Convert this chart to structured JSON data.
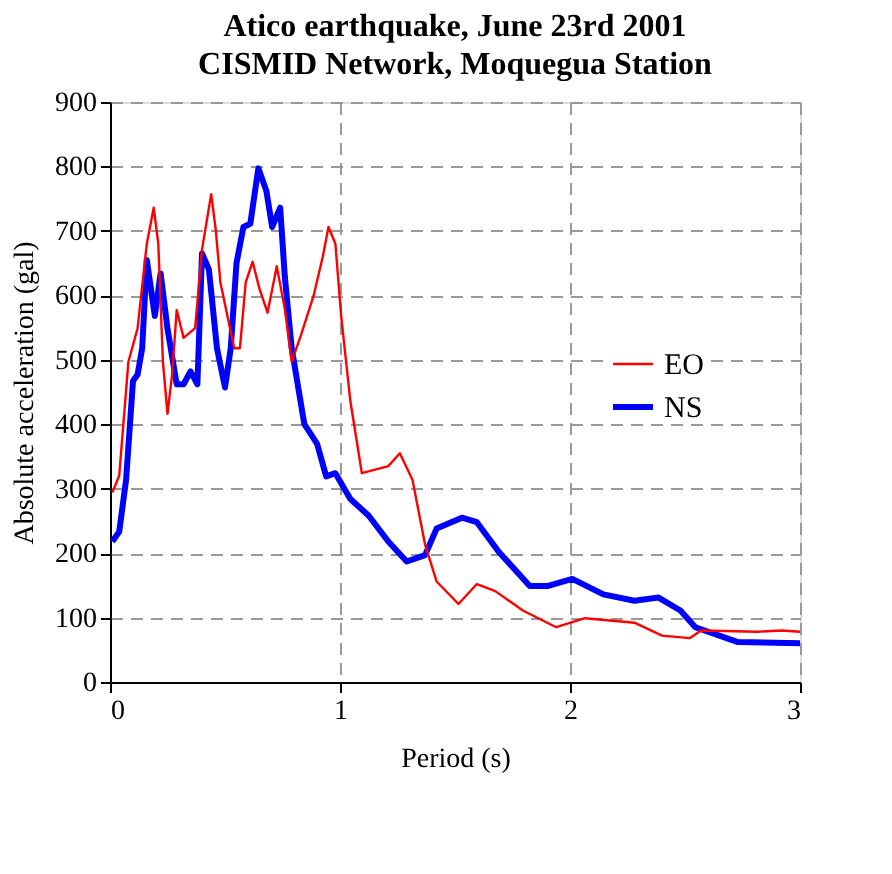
{
  "chart_data": {
    "type": "line",
    "title": "Atico earthquake, June 23rd 2001",
    "subtitle": "CISMID Network, Moquegua Station",
    "xlabel": "Period (s)",
    "ylabel": "Absolute acceleration (gal)",
    "xlim": [
      0,
      3
    ],
    "xticks": [
      0,
      1,
      2,
      3
    ],
    "ylim": [
      0,
      900
    ],
    "yticks": [
      0,
      100,
      200,
      300,
      400,
      500,
      600,
      700,
      800,
      900
    ],
    "grid": true,
    "legend": "right",
    "line_style": "solid",
    "marker": "none",
    "series": [
      {
        "name": "EO",
        "color": "#ff0000",
        "x": [
          0.01,
          0.04,
          0.08,
          0.12,
          0.16,
          0.19,
          0.21,
          0.23,
          0.25,
          0.27,
          0.29,
          0.32,
          0.37,
          0.4,
          0.44,
          0.46,
          0.48,
          0.54,
          0.565,
          0.59,
          0.62,
          0.65,
          0.685,
          0.725,
          0.76,
          0.79,
          0.83,
          0.885,
          0.925,
          0.95,
          0.98,
          1.005,
          1.045,
          1.095,
          1.21,
          1.26,
          1.315,
          1.37,
          1.42,
          1.515,
          1.595,
          1.675,
          1.795,
          1.94,
          2.065,
          2.28,
          2.4,
          2.52,
          2.57,
          2.815,
          2.92,
          3.0
        ],
        "values": [
          294,
          320,
          497,
          549,
          680,
          736,
          680,
          497,
          416,
          477,
          577,
          534,
          549,
          671,
          757,
          701,
          620,
          518,
          518,
          620,
          652,
          610,
          573,
          645,
          579,
          497,
          538,
          599,
          660,
          706,
          680,
          568,
          436,
          324,
          335,
          355,
          314,
          213,
          156,
          121,
          152,
          141,
          111,
          85,
          99,
          92,
          72,
          68,
          80,
          78,
          80,
          78
        ]
      },
      {
        "name": "NS",
        "color": "#0000ff",
        "x": [
          0.01,
          0.04,
          0.07,
          0.1,
          0.12,
          0.14,
          0.16,
          0.195,
          0.22,
          0.25,
          0.29,
          0.32,
          0.35,
          0.38,
          0.4,
          0.43,
          0.465,
          0.5,
          0.525,
          0.55,
          0.58,
          0.61,
          0.645,
          0.68,
          0.705,
          0.74,
          0.76,
          0.79,
          0.845,
          0.9,
          0.94,
          0.98,
          1.045,
          1.125,
          1.21,
          1.29,
          1.37,
          1.42,
          1.53,
          1.595,
          1.69,
          1.825,
          1.905,
          2.01,
          2.145,
          2.28,
          2.385,
          2.48,
          2.545,
          2.73,
          3.0
        ],
        "values": [
          218,
          233,
          314,
          467,
          477,
          518,
          655,
          568,
          634,
          548,
          462,
          462,
          482,
          462,
          665,
          640,
          518,
          457,
          518,
          650,
          706,
          711,
          797,
          762,
          706,
          736,
          629,
          518,
          400,
          370,
          319,
          324,
          284,
          258,
          218,
          187,
          197,
          238,
          255,
          248,
          202,
          149,
          149,
          160,
          136,
          126,
          131,
          111,
          85,
          62,
          60
        ]
      }
    ]
  }
}
